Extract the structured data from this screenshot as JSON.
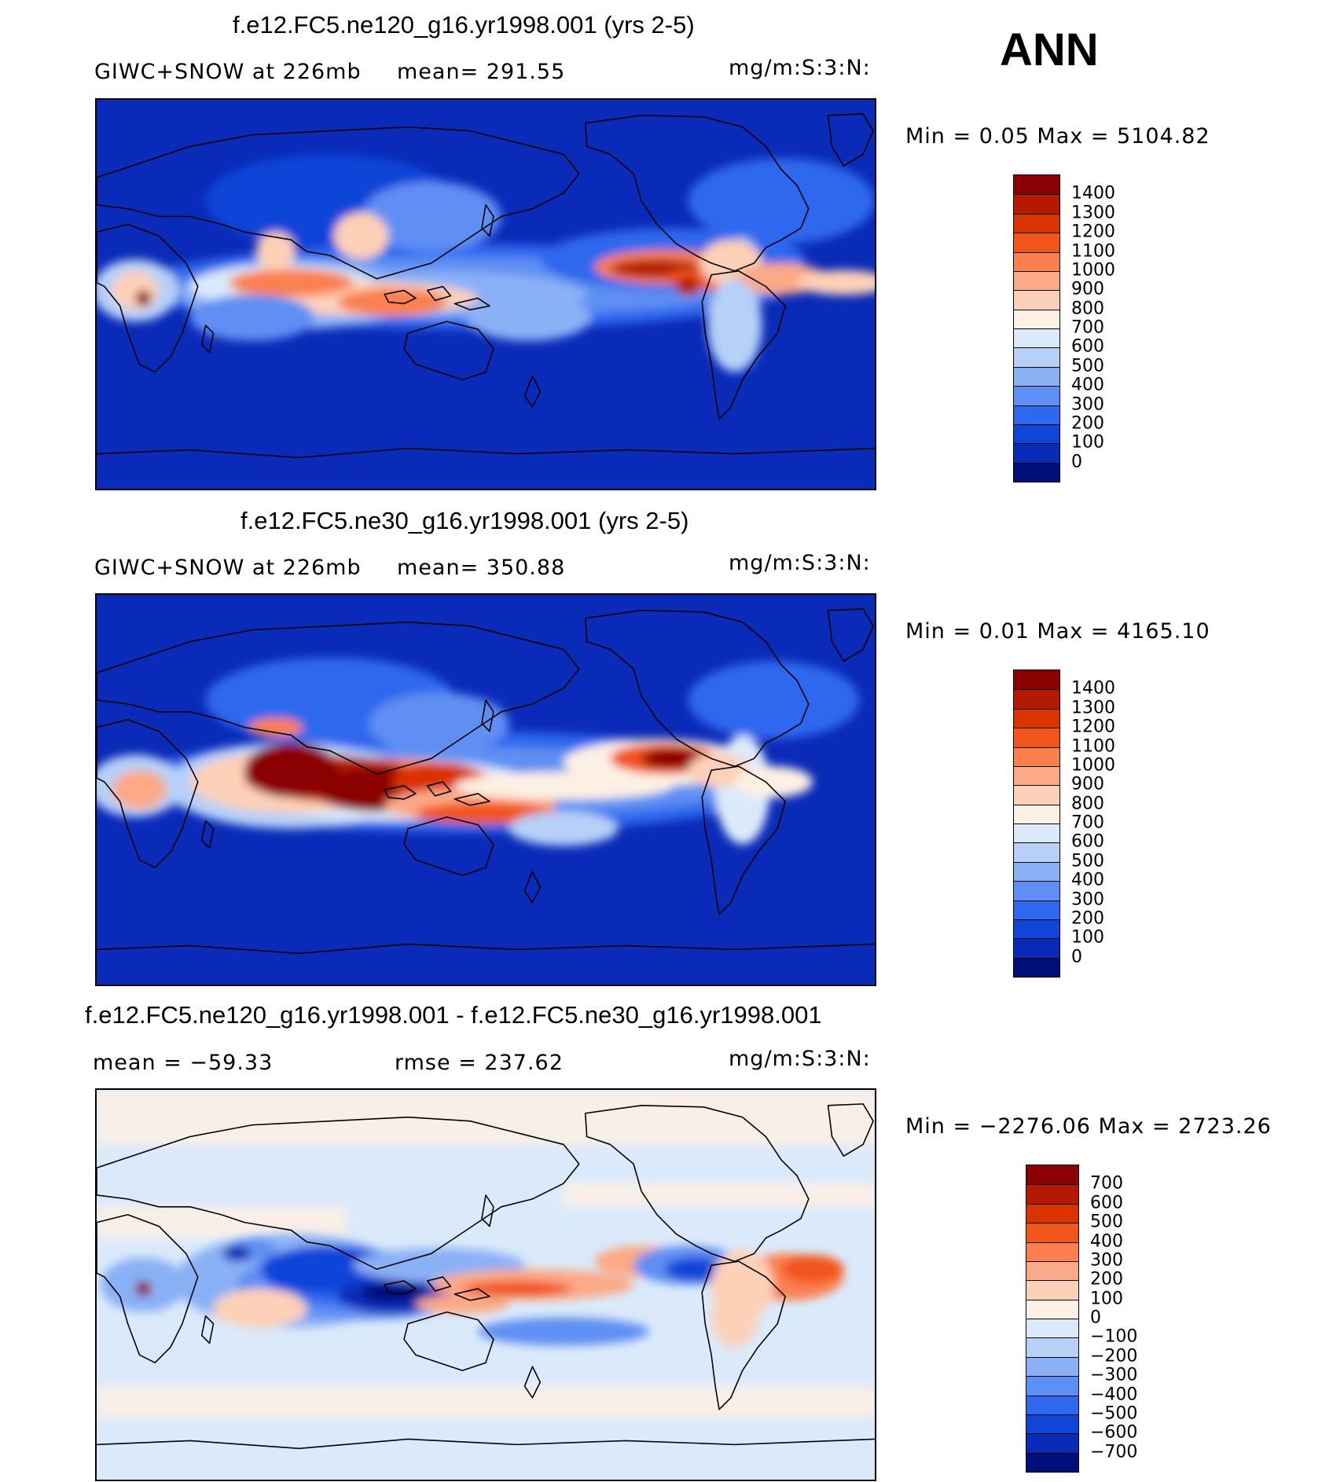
{
  "season_label": "ANN",
  "panels": [
    {
      "title": "f.e12.FC5.ne120_g16.yr1998.001 (yrs 2-5)",
      "left_text": "GIWC+SNOW  at  226mb",
      "mid_text": "mean=  291.55",
      "units": "mg/m:S:3:N:",
      "minmax": "Min  =     0.05  Max  =  5104.82",
      "colorbar": {
        "labels": [
          "1400",
          "1300",
          "1200",
          "1100",
          "1000",
          "900",
          "800",
          "700",
          "600",
          "500",
          "400",
          "300",
          "200",
          "100",
          "0"
        ],
        "colors": [
          "#8b0000",
          "#b31a00",
          "#d93300",
          "#f2551a",
          "#fa8050",
          "#fca985",
          "#fdd0b8",
          "#fdf0e4",
          "#dbeafa",
          "#b6d0f8",
          "#8ab0f6",
          "#5e8ff3",
          "#2e68ee",
          "#1045d8",
          "#0a2bb8",
          "#00107a"
        ]
      },
      "field": "model_high"
    },
    {
      "title": "f.e12.FC5.ne30_g16.yr1998.001 (yrs 2-5)",
      "left_text": "GIWC+SNOW  at  226mb",
      "mid_text": "mean=  350.88",
      "units": "mg/m:S:3:N:",
      "minmax": "Min  =     0.01  Max  =  4165.10",
      "colorbar": {
        "labels": [
          "1400",
          "1300",
          "1200",
          "1100",
          "1000",
          "900",
          "800",
          "700",
          "600",
          "500",
          "400",
          "300",
          "200",
          "100",
          "0"
        ],
        "colors": [
          "#8b0000",
          "#b31a00",
          "#d93300",
          "#f2551a",
          "#fa8050",
          "#fca985",
          "#fdd0b8",
          "#fdf0e4",
          "#dbeafa",
          "#b6d0f8",
          "#8ab0f6",
          "#5e8ff3",
          "#2e68ee",
          "#1045d8",
          "#0a2bb8",
          "#00107a"
        ]
      },
      "field": "model_low"
    },
    {
      "title": "f.e12.FC5.ne120_g16.yr1998.001 - f.e12.FC5.ne30_g16.yr1998.001",
      "left_text": "mean  =  −59.33",
      "mid_text": "rmse  =  237.62",
      "units": "mg/m:S:3:N:",
      "minmax": "Min  = −2276.06  Max  =  2723.26",
      "colorbar": {
        "labels": [
          "700",
          "600",
          "500",
          "400",
          "300",
          "200",
          "100",
          "0",
          "−100",
          "−200",
          "−300",
          "−400",
          "−500",
          "−600",
          "−700"
        ],
        "colors": [
          "#8b0000",
          "#b31a00",
          "#d93300",
          "#f2551a",
          "#fa8050",
          "#fca985",
          "#fdd0b8",
          "#fdf0e4",
          "#dbeafa",
          "#b6d0f8",
          "#8ab0f6",
          "#5e8ff3",
          "#2e68ee",
          "#1045d8",
          "#0a2bb8",
          "#00107a"
        ]
      },
      "field": "difference"
    }
  ],
  "colors": {
    "ocean_low": "#0a2bb8",
    "diff_background": "#dbeafa",
    "diff_warm": "#fdf0e4",
    "coastline": "#000000"
  }
}
